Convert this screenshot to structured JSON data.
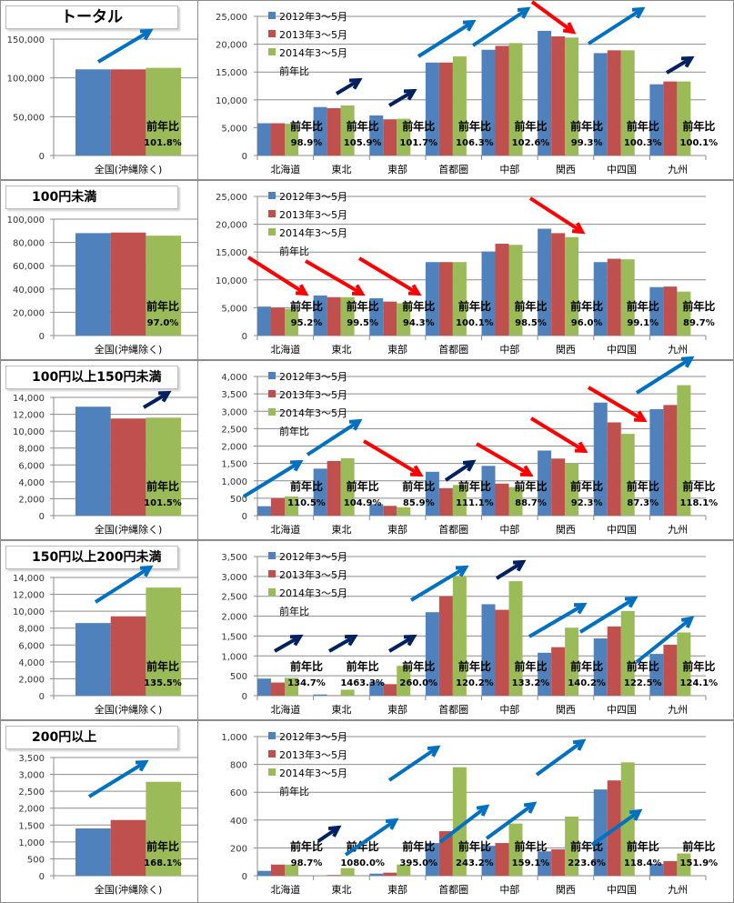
{
  "legend": [
    "2012年3～5月",
    "2013年3～5月",
    "2014年3～5月"
  ],
  "legend_ratio_label": "前年比",
  "ratio_label": "前年比",
  "colors": {
    "y2012": "#4F81BD",
    "y2013": "#C0504D",
    "y2014": "#9BBB59",
    "up": "#0070C0",
    "up_small": "#002060",
    "down": "#FF0000"
  },
  "national_category": "全国(沖縄除く)",
  "regions": [
    "北海道",
    "東北",
    "東部",
    "首都圏",
    "中部",
    "関西",
    "中四国",
    "九州"
  ],
  "chart_data": [
    {
      "title": "トータル",
      "type": "bar",
      "national": {
        "values": [
          111000,
          111000,
          113000
        ],
        "ratio": "101.8%",
        "ylim": [
          0,
          150000
        ],
        "step": 50000,
        "ticks": [
          "0",
          "50,000",
          "100,000",
          "150,000"
        ]
      },
      "regional": {
        "ylim": [
          0,
          25000
        ],
        "step": 5000,
        "ticks": [
          "0",
          "5,000",
          "10,000",
          "15,000",
          "20,000",
          "25,000"
        ],
        "series": [
          {
            "name": "2012年3～5月",
            "values": [
              5800,
              8700,
              7200,
              16700,
              19000,
              22400,
              18400,
              12800
            ]
          },
          {
            "name": "2013年3～5月",
            "values": [
              5800,
              8500,
              6500,
              16700,
              19700,
              21400,
              18900,
              13300
            ]
          },
          {
            "name": "2014年3～5月",
            "values": [
              5700,
              9000,
              6600,
              17800,
              20200,
              21200,
              18900,
              13300
            ]
          }
        ],
        "ratios": [
          "98.9%",
          "105.9%",
          "101.7%",
          "106.3%",
          "102.6%",
          "99.3%",
          "100.3%",
          "100.1%"
        ]
      }
    },
    {
      "title": "100円未満",
      "type": "bar",
      "national": {
        "values": [
          88000,
          88500,
          85800
        ],
        "ratio": "97.0%",
        "ylim": [
          0,
          100000
        ],
        "step": 20000,
        "ticks": [
          "0",
          "20,000",
          "40,000",
          "60,000",
          "80,000",
          "100,000"
        ]
      },
      "regional": {
        "ylim": [
          0,
          25000
        ],
        "step": 5000,
        "ticks": [
          "0",
          "5,000",
          "10,000",
          "15,000",
          "20,000",
          "25,000"
        ],
        "series": [
          {
            "name": "2012年3～5月",
            "values": [
              5200,
              7200,
              6700,
              13200,
              15100,
              19200,
              13200,
              8700
            ]
          },
          {
            "name": "2013年3～5月",
            "values": [
              5000,
              6900,
              6100,
              13200,
              16500,
              18400,
              13800,
              8800
            ]
          },
          {
            "name": "2014年3～5月",
            "values": [
              4800,
              6900,
              5800,
              13200,
              16300,
              17700,
              13700,
              7900
            ]
          }
        ],
        "ratios": [
          "95.2%",
          "99.5%",
          "94.3%",
          "100.1%",
          "98.5%",
          "96.0%",
          "99.1%",
          "89.7%"
        ]
      }
    },
    {
      "title": "100円以上150円未満",
      "type": "bar",
      "national": {
        "values": [
          12900,
          11500,
          11600
        ],
        "ratio": "101.5%",
        "ylim": [
          0,
          14000
        ],
        "step": 2000,
        "ticks": [
          "0",
          "2,000",
          "4,000",
          "6,000",
          "8,000",
          "10,000",
          "12,000",
          "14,000"
        ]
      },
      "regional": {
        "ylim": [
          0,
          4000
        ],
        "step": 500,
        "ticks": [
          "0",
          "500",
          "1,000",
          "1,500",
          "2,000",
          "2,500",
          "3,000",
          "3,500",
          "4,000"
        ],
        "series": [
          {
            "name": "2012年3～5月",
            "values": [
              270,
              1350,
              330,
              1260,
              1430,
              1870,
              3250,
              3060
            ]
          },
          {
            "name": "2013年3～5月",
            "values": [
              500,
              1570,
              280,
              790,
              920,
              1640,
              2680,
              3180
            ]
          },
          {
            "name": "2014年3～5月",
            "values": [
              550,
              1650,
              240,
              880,
              820,
              1500,
              2350,
              3750
            ]
          }
        ],
        "ratios": [
          "110.5%",
          "104.9%",
          "85.9%",
          "111.1%",
          "88.7%",
          "92.3%",
          "87.3%",
          "118.1%"
        ]
      }
    },
    {
      "title": "150円以上200円未満",
      "type": "bar",
      "national": {
        "values": [
          8600,
          9400,
          12800
        ],
        "ratio": "135.5%",
        "ylim": [
          0,
          14000
        ],
        "step": 2000,
        "ticks": [
          "0",
          "2,000",
          "4,000",
          "6,000",
          "8,000",
          "10,000",
          "12,000",
          "14,000"
        ]
      },
      "regional": {
        "ylim": [
          0,
          3500
        ],
        "step": 500,
        "ticks": [
          "0",
          "500",
          "1,000",
          "1,500",
          "2,000",
          "2,500",
          "3,000",
          "3,500"
        ],
        "series": [
          {
            "name": "2012年3～5月",
            "values": [
              430,
              30,
              350,
              2100,
              2300,
              1080,
              1440,
              1050
            ]
          },
          {
            "name": "2013年3～5月",
            "values": [
              330,
              10,
              290,
              2500,
              2160,
              1220,
              1740,
              1280
            ]
          },
          {
            "name": "2014年3～5月",
            "values": [
              450,
              150,
              750,
              3000,
              2880,
              1710,
              2130,
              1590
            ]
          }
        ],
        "ratios": [
          "134.7%",
          "1463.3%",
          "260.0%",
          "120.2%",
          "133.2%",
          "140.2%",
          "122.5%",
          "124.1%"
        ]
      }
    },
    {
      "title": "200円以上",
      "type": "bar",
      "national": {
        "values": [
          1400,
          1650,
          2780
        ],
        "ratio": "168.1%",
        "ylim": [
          0,
          3500
        ],
        "step": 500,
        "ticks": [
          "0",
          "500",
          "1,000",
          "1,500",
          "2,000",
          "2,500",
          "3,000",
          "3,500"
        ]
      },
      "regional": {
        "ylim": [
          0,
          1000
        ],
        "step": 200,
        "ticks": [
          "0",
          "200",
          "400",
          "600",
          "800",
          "1,000"
        ],
        "series": [
          {
            "name": "2012年3～5月",
            "values": [
              35,
              0,
              15,
              235,
              215,
              175,
              620,
              85
            ]
          },
          {
            "name": "2013年3～5月",
            "values": [
              80,
              5,
              22,
              320,
              235,
              190,
              685,
              105
            ]
          },
          {
            "name": "2014年3～5月",
            "values": [
              80,
              55,
              80,
              780,
              375,
              425,
              815,
              160
            ]
          }
        ],
        "ratios": [
          "98.7%",
          "1080.0%",
          "395.0%",
          "243.2%",
          "159.1%",
          "223.6%",
          "118.4%",
          "151.9%"
        ]
      }
    }
  ]
}
